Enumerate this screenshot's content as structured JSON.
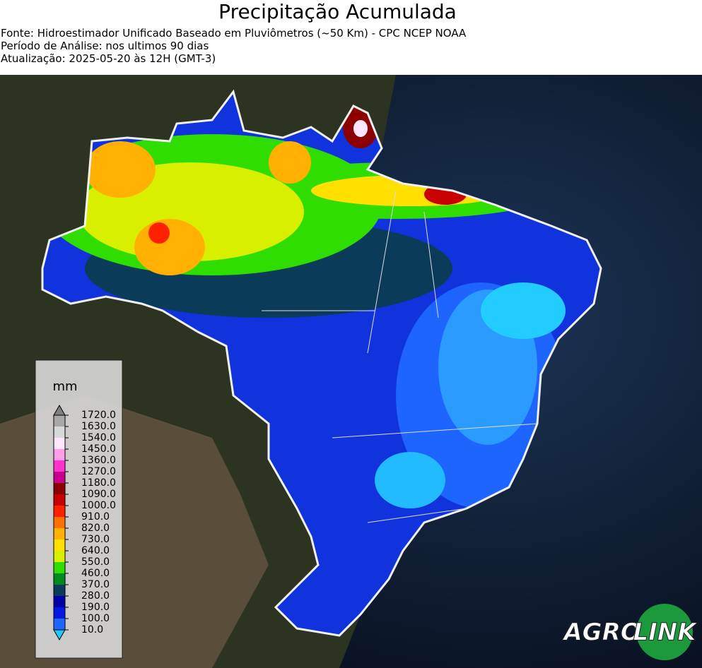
{
  "header": {
    "title": "Precipitação Acumulada",
    "lines": [
      "Fonte: Hidroestimador Unificado Baseado em Pluviômetros (~50 Km) - CPC NCEP NOAA",
      "Período de Análise: nos ultimos 90 dias",
      "Atualização: 2025-05-20 às 12H (GMT-3)"
    ]
  },
  "legend": {
    "unit": "mm",
    "labels": [
      "1720.0",
      "1630.0",
      "1540.0",
      "1450.0",
      "1360.0",
      "1270.0",
      "1180.0",
      "1090.0",
      "1000.0",
      "910.0",
      "820.0",
      "730.0",
      "640.0",
      "550.0",
      "460.0",
      "370.0",
      "280.0",
      "190.0",
      "100.0",
      "10.0"
    ],
    "colors": [
      "#a8a8a8",
      "#d8d8d8",
      "#ffe6ff",
      "#ff9de8",
      "#ff33cc",
      "#c8008c",
      "#8c0000",
      "#c80000",
      "#ff2000",
      "#ff7000",
      "#ffb000",
      "#ffe000",
      "#d8f000",
      "#30dd00",
      "#008a20",
      "#0a3c5a",
      "#0000a8",
      "#0018e0",
      "#1e64ff"
    ],
    "under_color": "#1ec8ff",
    "over_color": "#808080"
  },
  "logo": {
    "text1": "AGRO",
    "text2": "LINK"
  }
}
